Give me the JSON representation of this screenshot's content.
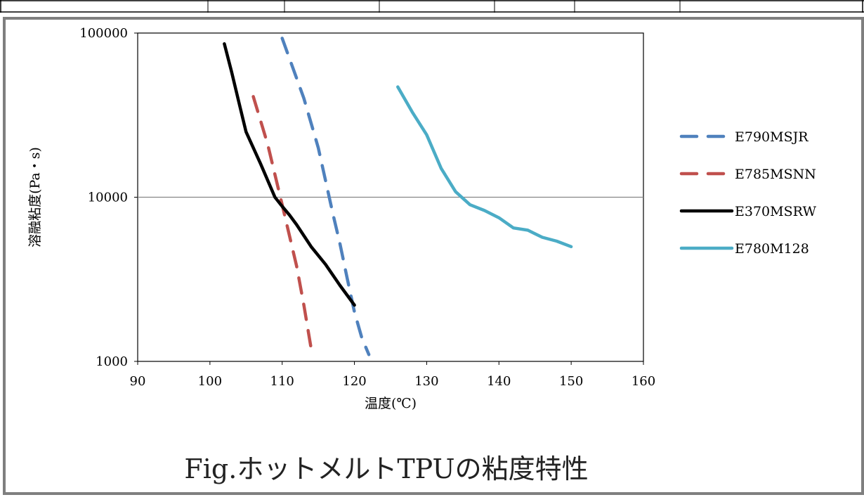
{
  "caption": "Fig.ホットメルトTPUの粘度特性",
  "chart_data": {
    "type": "line",
    "title": "",
    "xlabel": "温度(℃)",
    "ylabel": "溶融粘度(Pa・s)",
    "xlim": [
      90,
      160
    ],
    "ylim": [
      1000,
      100000
    ],
    "yscale": "log",
    "x_ticks": [
      "90",
      "100",
      "110",
      "120",
      "130",
      "140",
      "150",
      "160"
    ],
    "y_ticks": [
      "1000",
      "10000",
      "100000"
    ],
    "grid": "y-major",
    "legend_position": "right",
    "series": [
      {
        "name": "E790MSJR",
        "color": "#4F81BD",
        "dash": true,
        "points": [
          [
            110,
            93000
          ],
          [
            113,
            40000
          ],
          [
            115,
            20000
          ],
          [
            117,
            8000
          ],
          [
            118,
            5200
          ],
          [
            119,
            3200
          ],
          [
            120,
            2000
          ],
          [
            121,
            1400
          ],
          [
            122,
            1100
          ]
        ]
      },
      {
        "name": "E785MSNN",
        "color": "#C0504D",
        "dash": true,
        "points": [
          [
            106,
            41000
          ],
          [
            108,
            21000
          ],
          [
            110,
            9000
          ],
          [
            112,
            3800
          ],
          [
            113,
            2200
          ],
          [
            114,
            1200
          ]
        ]
      },
      {
        "name": "E370MSRW",
        "color": "#000000",
        "dash": false,
        "points": [
          [
            102,
            86000
          ],
          [
            103,
            58000
          ],
          [
            104,
            38000
          ],
          [
            105,
            25000
          ],
          [
            107,
            16000
          ],
          [
            109,
            10000
          ],
          [
            110,
            8800
          ],
          [
            111,
            7800
          ],
          [
            112,
            6800
          ],
          [
            114,
            5000
          ],
          [
            116,
            3900
          ],
          [
            118,
            2900
          ],
          [
            120,
            2200
          ]
        ]
      },
      {
        "name": "E780M128",
        "color": "#4BACC6",
        "dash": false,
        "points": [
          [
            126,
            47000
          ],
          [
            128,
            33000
          ],
          [
            130,
            24000
          ],
          [
            132,
            15000
          ],
          [
            134,
            10800
          ],
          [
            136,
            9000
          ],
          [
            138,
            8300
          ],
          [
            140,
            7500
          ],
          [
            142,
            6500
          ],
          [
            144,
            6300
          ],
          [
            146,
            5700
          ],
          [
            148,
            5400
          ],
          [
            150,
            5000
          ]
        ]
      }
    ]
  }
}
